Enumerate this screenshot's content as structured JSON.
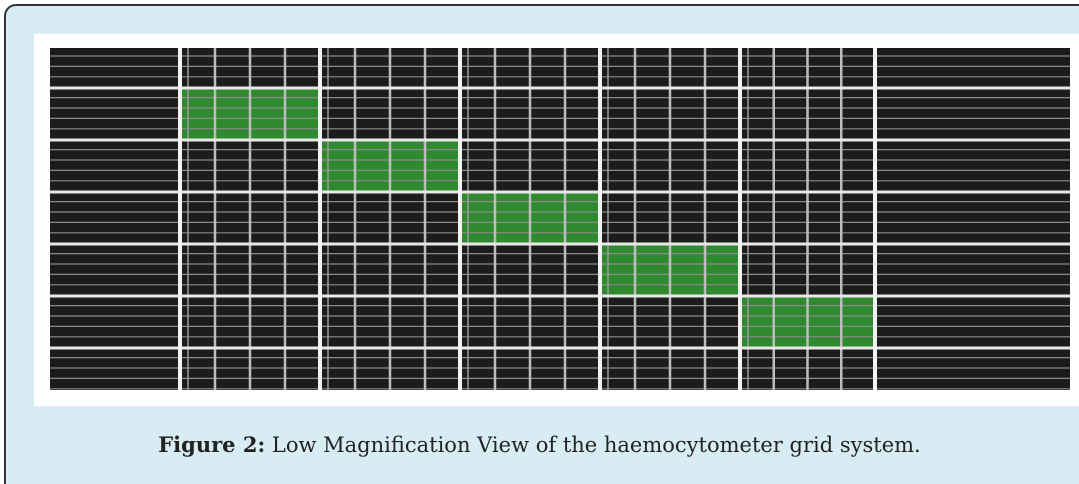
{
  "figure": {
    "label": "Figure 2:",
    "caption": "Low Magnification View of the haemocytometer grid system."
  }
}
